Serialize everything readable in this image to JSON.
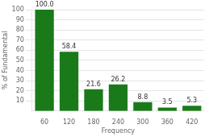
{
  "chart_data": {
    "type": "bar",
    "categories": [
      "60",
      "120",
      "180",
      "240",
      "300",
      "360",
      "420"
    ],
    "values": [
      100.0,
      58.4,
      21.6,
      26.2,
      8.8,
      3.5,
      5.3
    ],
    "value_labels": [
      "100.0",
      "58.4",
      "21.6",
      "26.2",
      "8.8",
      "3.5",
      "5.3"
    ],
    "data_labels": true,
    "color": "#1a7a1a",
    "x_label": "Frequency",
    "y_label": "% of Fundamental",
    "ylim": [
      0,
      100
    ],
    "yticks": [
      10,
      20,
      30,
      40,
      50,
      60,
      70,
      80,
      90,
      100
    ],
    "grid": true
  }
}
